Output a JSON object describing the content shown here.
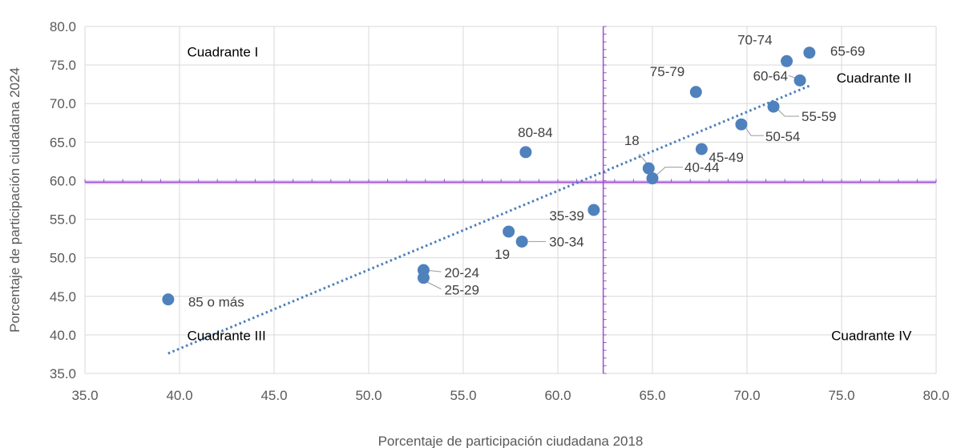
{
  "chart_data": {
    "type": "scatter",
    "title": "",
    "xlabel": "Porcentaje de participación ciudadana 2018",
    "ylabel": "Porcentaje de participación ciudadana 2024",
    "xlim": [
      35.0,
      80.0
    ],
    "ylim": [
      35.0,
      80.0
    ],
    "x_ticks": [
      "35.0",
      "40.0",
      "45.0",
      "50.0",
      "55.0",
      "60.0",
      "65.0",
      "70.0",
      "75.0",
      "80.0"
    ],
    "y_ticks": [
      "35.0",
      "40.0",
      "45.0",
      "50.0",
      "55.0",
      "60.0",
      "65.0",
      "70.0",
      "75.0",
      "80.0"
    ],
    "grid": true,
    "points": [
      {
        "label": "18",
        "x": 64.8,
        "y": 61.6
      },
      {
        "label": "19",
        "x": 57.4,
        "y": 53.4
      },
      {
        "label": "20-24",
        "x": 52.9,
        "y": 48.4
      },
      {
        "label": "25-29",
        "x": 52.9,
        "y": 47.4
      },
      {
        "label": "30-34",
        "x": 58.1,
        "y": 52.1
      },
      {
        "label": "35-39",
        "x": 61.9,
        "y": 56.2
      },
      {
        "label": "40-44",
        "x": 65.0,
        "y": 60.3
      },
      {
        "label": "45-49",
        "x": 67.6,
        "y": 64.1
      },
      {
        "label": "50-54",
        "x": 69.7,
        "y": 67.3
      },
      {
        "label": "55-59",
        "x": 71.4,
        "y": 69.6
      },
      {
        "label": "60-64",
        "x": 72.8,
        "y": 73.0
      },
      {
        "label": "65-69",
        "x": 73.3,
        "y": 76.6
      },
      {
        "label": "70-74",
        "x": 72.1,
        "y": 75.5
      },
      {
        "label": "75-79",
        "x": 67.3,
        "y": 71.5
      },
      {
        "label": "80-84",
        "x": 58.3,
        "y": 63.7
      },
      {
        "label": "85 o más",
        "x": 39.4,
        "y": 44.6
      }
    ],
    "trendline": {
      "x": [
        39.4,
        73.3
      ],
      "y": [
        37.6,
        72.3
      ]
    },
    "reference_lines": {
      "x": 62.4,
      "y": 59.8
    },
    "quadrants": [
      {
        "label": "Cuadrante I",
        "x": 40.4,
        "y": 76.1
      },
      {
        "label": "Cuadrante II",
        "x": 78.7,
        "y": 72.7
      },
      {
        "label": "Cuadrante III",
        "x": 40.4,
        "y": 39.3
      },
      {
        "label": "Cuadrante IV",
        "x": 78.7,
        "y": 39.3
      }
    ],
    "colors": {
      "points": "#4f81bd",
      "trend": "#4a7ebb",
      "reference": "#9b4fd0",
      "grid": "#d9d9d9"
    }
  }
}
